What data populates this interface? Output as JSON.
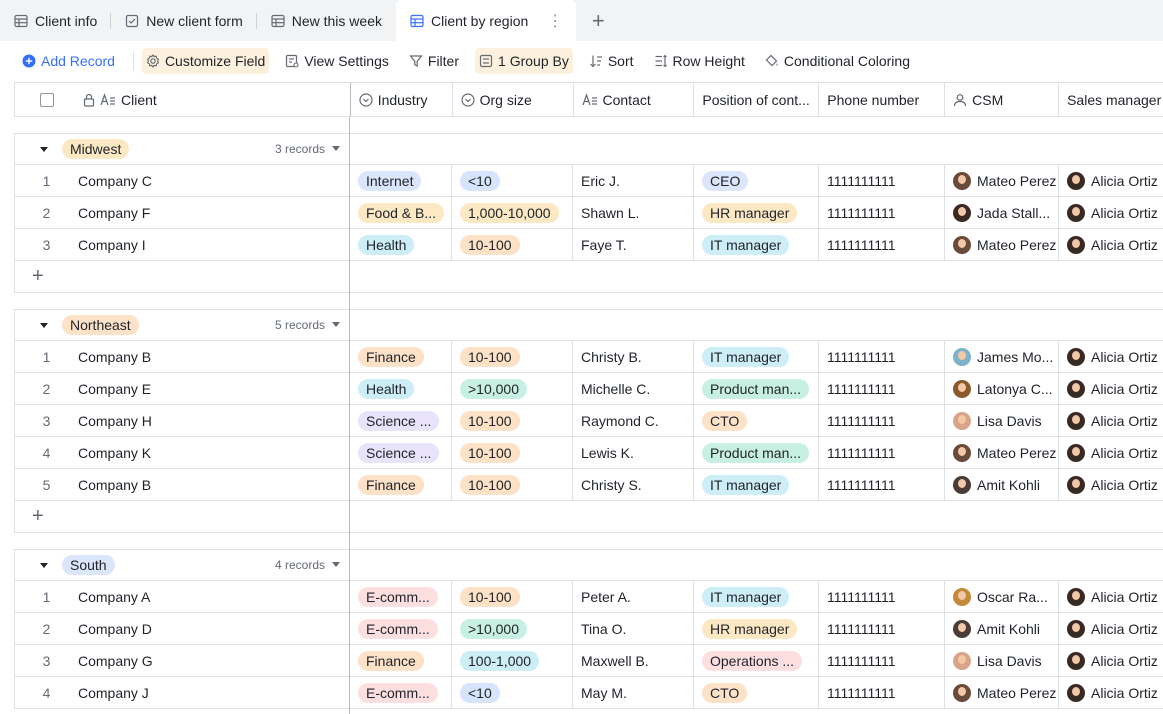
{
  "tabs": [
    {
      "label": "Client info",
      "icon": "grid-icon",
      "active": false
    },
    {
      "label": "New client form",
      "icon": "form-icon",
      "active": false
    },
    {
      "label": "New this week",
      "icon": "grid-icon",
      "active": false
    },
    {
      "label": "Client by region",
      "icon": "grid-icon",
      "active": true
    }
  ],
  "toolbar": {
    "add_record": "Add Record",
    "customize_field": "Customize Field",
    "view_settings": "View Settings",
    "filter": "Filter",
    "group_by": "1 Group By",
    "sort": "Sort",
    "row_height": "Row Height",
    "conditional_coloring": "Conditional Coloring"
  },
  "columns": {
    "client": "Client",
    "industry": "Industry",
    "org_size": "Org size",
    "contact": "Contact",
    "position": "Position of cont...",
    "phone": "Phone number",
    "csm": "CSM",
    "sales_manager": "Sales manager"
  },
  "colors": {
    "Internet": "#dbe5fb",
    "Food & B...": "#fce8c3",
    "Health": "#cdeef6",
    "Finance": "#fde2c7",
    "Science ...": "#e8e3fb",
    "E-comm...": "#fddfdf",
    "<10": "#d6e4fd",
    "1,000-10,000": "#fce8c3",
    "10-100": "#fde2c7",
    ">10,000": "#c8f0e0",
    "100-1,000": "#cdeef6",
    "CEO": "#dbe5fb",
    "HR manager": "#fce8c3",
    "IT manager": "#cdeef6",
    "Product man...": "#c8f0e0",
    "CTO": "#fde2c7",
    "Operations ...": "#fddfdf",
    "Midwest": "#fce8c3",
    "Northeast": "#fde2c7",
    "South": "#dbe5fb"
  },
  "groups": [
    {
      "name": "Midwest",
      "count": "3 records",
      "rows": [
        {
          "num": "1",
          "client": "Company C",
          "industry": "Internet",
          "org": "<10",
          "contact": "Eric J.",
          "position": "CEO",
          "phone": "1111111111",
          "csm": "Mateo Perez",
          "csm_tone": "#6b4a3a",
          "sales": "Alicia Ortiz"
        },
        {
          "num": "2",
          "client": "Company F",
          "industry": "Food & B...",
          "org": "1,000-10,000",
          "contact": "Shawn L.",
          "position": "HR manager",
          "phone": "1111111111",
          "csm": "Jada Stall...",
          "csm_tone": "#3b2a22",
          "sales": "Alicia Ortiz"
        },
        {
          "num": "3",
          "client": "Company I",
          "industry": "Health",
          "org": "10-100",
          "contact": "Faye T.",
          "position": "IT manager",
          "phone": "1111111111",
          "csm": "Mateo Perez",
          "csm_tone": "#6b4a3a",
          "sales": "Alicia Ortiz"
        }
      ]
    },
    {
      "name": "Northeast",
      "count": "5 records",
      "rows": [
        {
          "num": "1",
          "client": "Company B",
          "industry": "Finance",
          "org": "10-100",
          "contact": "Christy B.",
          "position": "IT manager",
          "phone": "1111111111",
          "csm": "James Mo...",
          "csm_tone": "#7fb3c9",
          "sales": "Alicia Ortiz"
        },
        {
          "num": "2",
          "client": "Company E",
          "industry": "Health",
          "org": ">10,000",
          "contact": "Michelle C.",
          "position": "Product man...",
          "phone": "1111111111",
          "csm": "Latonya C...",
          "csm_tone": "#8a5a2b",
          "sales": "Alicia Ortiz"
        },
        {
          "num": "3",
          "client": "Company H",
          "industry": "Science ...",
          "org": "10-100",
          "contact": "Raymond C.",
          "position": "CTO",
          "phone": "1111111111",
          "csm": "Lisa Davis",
          "csm_tone": "#d9a58a",
          "sales": "Alicia Ortiz"
        },
        {
          "num": "4",
          "client": "Company K",
          "industry": "Science ...",
          "org": "10-100",
          "contact": "Lewis K.",
          "position": "Product man...",
          "phone": "1111111111",
          "csm": "Mateo Perez",
          "csm_tone": "#6b4a3a",
          "sales": "Alicia Ortiz"
        },
        {
          "num": "5",
          "client": "Company B",
          "industry": "Finance",
          "org": "10-100",
          "contact": "Christy S.",
          "position": "IT manager",
          "phone": "1111111111",
          "csm": "Amit Kohli",
          "csm_tone": "#4a3b35",
          "sales": "Alicia Ortiz"
        }
      ]
    },
    {
      "name": "South",
      "count": "4 records",
      "rows": [
        {
          "num": "1",
          "client": "Company A",
          "industry": "E-comm...",
          "org": "10-100",
          "contact": "Peter A.",
          "position": "IT manager",
          "phone": "1111111111",
          "csm": "Oscar Ra...",
          "csm_tone": "#c48a3a",
          "sales": "Alicia Ortiz"
        },
        {
          "num": "2",
          "client": "Company D",
          "industry": "E-comm...",
          "org": ">10,000",
          "contact": "Tina O.",
          "position": "HR manager",
          "phone": "1111111111",
          "csm": "Amit Kohli",
          "csm_tone": "#4a3b35",
          "sales": "Alicia Ortiz"
        },
        {
          "num": "3",
          "client": "Company G",
          "industry": "Finance",
          "org": "100-1,000",
          "contact": "Maxwell B.",
          "position": "Operations ...",
          "phone": "1111111111",
          "csm": "Lisa Davis",
          "csm_tone": "#d9a58a",
          "sales": "Alicia Ortiz"
        },
        {
          "num": "4",
          "client": "Company J",
          "industry": "E-comm...",
          "org": "<10",
          "contact": "May M.",
          "position": "CTO",
          "phone": "1111111111",
          "csm": "Mateo Perez",
          "csm_tone": "#6b4a3a",
          "sales": "Alicia Ortiz"
        }
      ]
    }
  ]
}
